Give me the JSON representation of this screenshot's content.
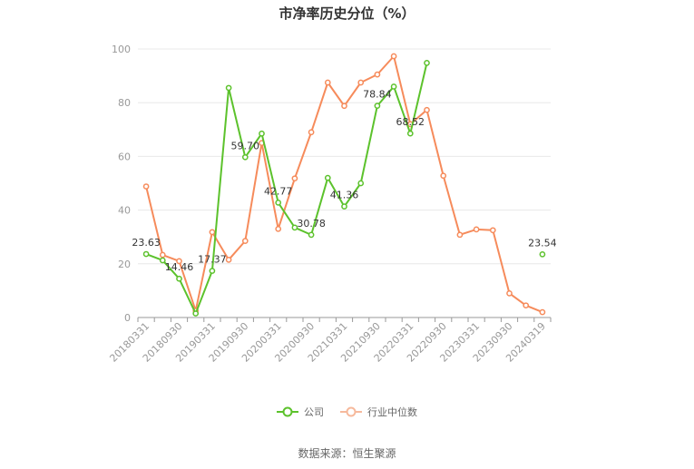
{
  "title": "市净率历史分位（%）",
  "source": "数据来源：恒生聚源",
  "colors": {
    "company": "#5cc22c",
    "industry": "#f68b5b",
    "grid": "#e8e8e8",
    "axis": "#999999"
  },
  "chart_data": {
    "type": "line",
    "title": "市净率历史分位（%）",
    "xlabel": "",
    "ylabel": "",
    "ylim": [
      0,
      100
    ],
    "yticks": [
      0,
      20,
      40,
      60,
      80,
      100
    ],
    "grid": true,
    "legend_position": "bottom",
    "x": [
      "20180331",
      "20180630",
      "20180930",
      "20181231",
      "20190331",
      "20190630",
      "20190930",
      "20191231",
      "20200331",
      "20200630",
      "20200930",
      "20201231",
      "20210331",
      "20210630",
      "20210930",
      "20211231",
      "20220331",
      "20220630",
      "20220930",
      "20221231",
      "20230331",
      "20230630",
      "20230930",
      "20231231",
      "20240319"
    ],
    "xtick_labels": [
      "20180331",
      "20180930",
      "20190331",
      "20190930",
      "20200331",
      "20200930",
      "20210331",
      "20210930",
      "20220331",
      "20220930",
      "20230331",
      "20230930",
      "20240319"
    ],
    "series": [
      {
        "name": "公司",
        "color": "#5cc22c",
        "values": [
          23.63,
          21.3,
          14.46,
          1.5,
          17.37,
          85.5,
          59.7,
          68.5,
          42.77,
          33.5,
          30.78,
          52.0,
          41.36,
          50.0,
          78.84,
          86.0,
          68.52,
          94.8,
          null,
          null,
          null,
          null,
          null,
          null,
          23.54
        ],
        "labels": {
          "0": "23.63",
          "2": "14.46",
          "4": "17.37",
          "6": "59.70",
          "8": "42.77",
          "10": "30.78",
          "12": "41.36",
          "14": "78.84",
          "16": "68.52",
          "24": "23.54"
        }
      },
      {
        "name": "行业中位数",
        "color": "#f68b5b",
        "values": [
          48.8,
          23.3,
          21.0,
          2.5,
          31.8,
          21.5,
          28.5,
          65.0,
          33.0,
          51.8,
          69.0,
          87.5,
          78.8,
          87.5,
          90.5,
          97.3,
          72.0,
          77.3,
          52.8,
          30.8,
          32.8,
          32.5,
          9.0,
          4.5,
          2.0
        ]
      }
    ]
  }
}
